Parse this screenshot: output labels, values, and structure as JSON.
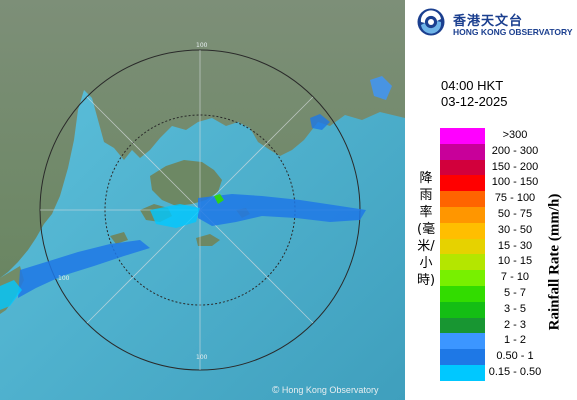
{
  "map": {
    "range_ring_labels": [
      "100",
      "100",
      "100"
    ],
    "copyright_symbol": "©",
    "copyright": "Hong Kong Observatory",
    "colors": {
      "sea": "#4fb3cf",
      "land": "#6e8a63",
      "rings": "#2a2a2a"
    }
  },
  "header": {
    "logo_cn": "香港天文台",
    "logo_en": "HONG KONG OBSERVATORY",
    "logo_icon": "hko-logo-icon"
  },
  "timestamp": {
    "time": "04:00 HKT",
    "date": "03-12-2025"
  },
  "legend": {
    "title_cn": "降雨率(毫米/小時)",
    "title_en": "Rainfall Rate (mm/h)",
    "items": [
      {
        "label": ">300",
        "color": "#ff00ff"
      },
      {
        "label": "200 - 300",
        "color": "#c8009a"
      },
      {
        "label": "150 - 200",
        "color": "#d2003c"
      },
      {
        "label": "100 - 150",
        "color": "#ff0000"
      },
      {
        "label": "75 - 100",
        "color": "#ff6400"
      },
      {
        "label": "50 - 75",
        "color": "#ff9600"
      },
      {
        "label": "30 - 50",
        "color": "#ffbe00"
      },
      {
        "label": "15 - 30",
        "color": "#e6d200"
      },
      {
        "label": "10 - 15",
        "color": "#b4e600"
      },
      {
        "label": "7 - 10",
        "color": "#78f000"
      },
      {
        "label": "5 - 7",
        "color": "#32dc00"
      },
      {
        "label": "3 - 5",
        "color": "#14be14"
      },
      {
        "label": "2 - 3",
        "color": "#189632"
      },
      {
        "label": "1 - 2",
        "color": "#3c96ff"
      },
      {
        "label": "0.50 - 1",
        "color": "#1e78e6"
      },
      {
        "label": "0.15 - 0.50",
        "color": "#00c8ff"
      }
    ]
  }
}
